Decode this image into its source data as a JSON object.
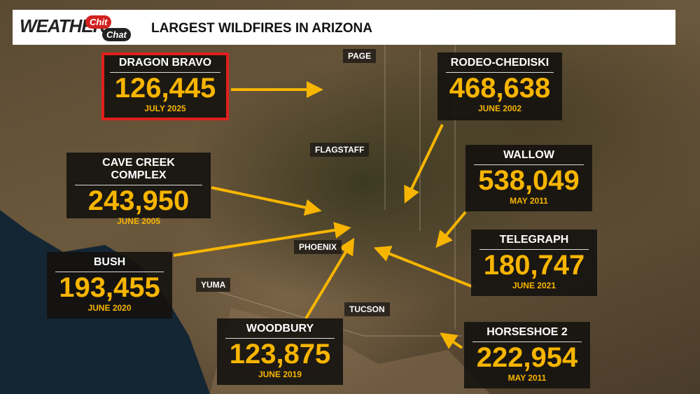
{
  "header": {
    "logo": "WEATHER",
    "logo_chit": "Chit",
    "logo_chat": "Chat",
    "title": "LARGEST WILDFIRES IN ARIZONA"
  },
  "fires": [
    {
      "name": "DRAGON BRAVO",
      "acres": "126,445",
      "date": "JULY 2025"
    },
    {
      "name": "RODEO-CHEDISKI",
      "acres": "468,638",
      "date": "JUNE 2002"
    },
    {
      "name": "CAVE CREEK COMPLEX",
      "acres": "243,950",
      "date": "JUNE 2005"
    },
    {
      "name": "WALLOW",
      "acres": "538,049",
      "date": "MAY 2011"
    },
    {
      "name": "TELEGRAPH",
      "acres": "180,747",
      "date": "JUNE 2021"
    },
    {
      "name": "BUSH",
      "acres": "193,455",
      "date": "JUNE 2020"
    },
    {
      "name": "WOODBURY",
      "acres": "123,875",
      "date": "JUNE 2019"
    },
    {
      "name": "HORSESHOE 2",
      "acres": "222,954",
      "date": "MAY 2011"
    }
  ],
  "cities": [
    "PAGE",
    "FLAGSTAFF",
    "PHOENIX",
    "YUMA",
    "TUCSON"
  ]
}
